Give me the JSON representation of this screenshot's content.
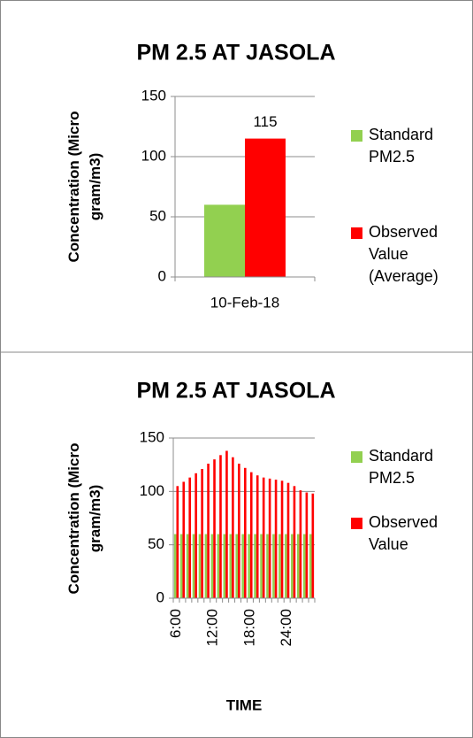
{
  "chart_data": [
    {
      "type": "bar",
      "title": "PM 2.5 AT JASOLA",
      "y_label": "Concentration (Micro gram/m3)",
      "categories": [
        "10-Feb-18"
      ],
      "series": [
        {
          "name": "Standard PM2.5",
          "color": "#92d050",
          "values": [
            60
          ]
        },
        {
          "name": "Observed Value (Average)",
          "color": "#ff0000",
          "values": [
            115
          ],
          "value_labels": [
            "115"
          ]
        }
      ],
      "ylim": [
        0,
        150
      ],
      "yticks": [
        0,
        50,
        100,
        150
      ],
      "grid": true,
      "legend": "right"
    },
    {
      "type": "bar",
      "title": "PM 2.5 AT JASOLA",
      "y_label": "Concentration (Micro gram/m3)",
      "x_label": "TIME",
      "categories": [
        "6:00",
        null,
        null,
        null,
        null,
        null,
        "12:00",
        null,
        null,
        null,
        null,
        null,
        "18:00",
        null,
        null,
        null,
        null,
        null,
        "24:00",
        null,
        null,
        null,
        null
      ],
      "series": [
        {
          "name": "Standard PM2.5",
          "color": "#92d050",
          "values": [
            60,
            60,
            60,
            60,
            60,
            60,
            60,
            60,
            60,
            60,
            60,
            60,
            60,
            60,
            60,
            60,
            60,
            60,
            60,
            60,
            60,
            60,
            60
          ]
        },
        {
          "name": "Observed Value",
          "color": "#ff0000",
          "values": [
            105,
            109,
            113,
            117,
            121,
            126,
            130,
            134,
            138,
            132,
            126,
            122,
            118,
            115,
            113,
            112,
            111,
            110,
            108,
            105,
            101,
            99,
            98
          ]
        }
      ],
      "ylim": [
        0,
        150
      ],
      "yticks": [
        0,
        50,
        100,
        150
      ],
      "grid": true,
      "legend": "right"
    }
  ]
}
